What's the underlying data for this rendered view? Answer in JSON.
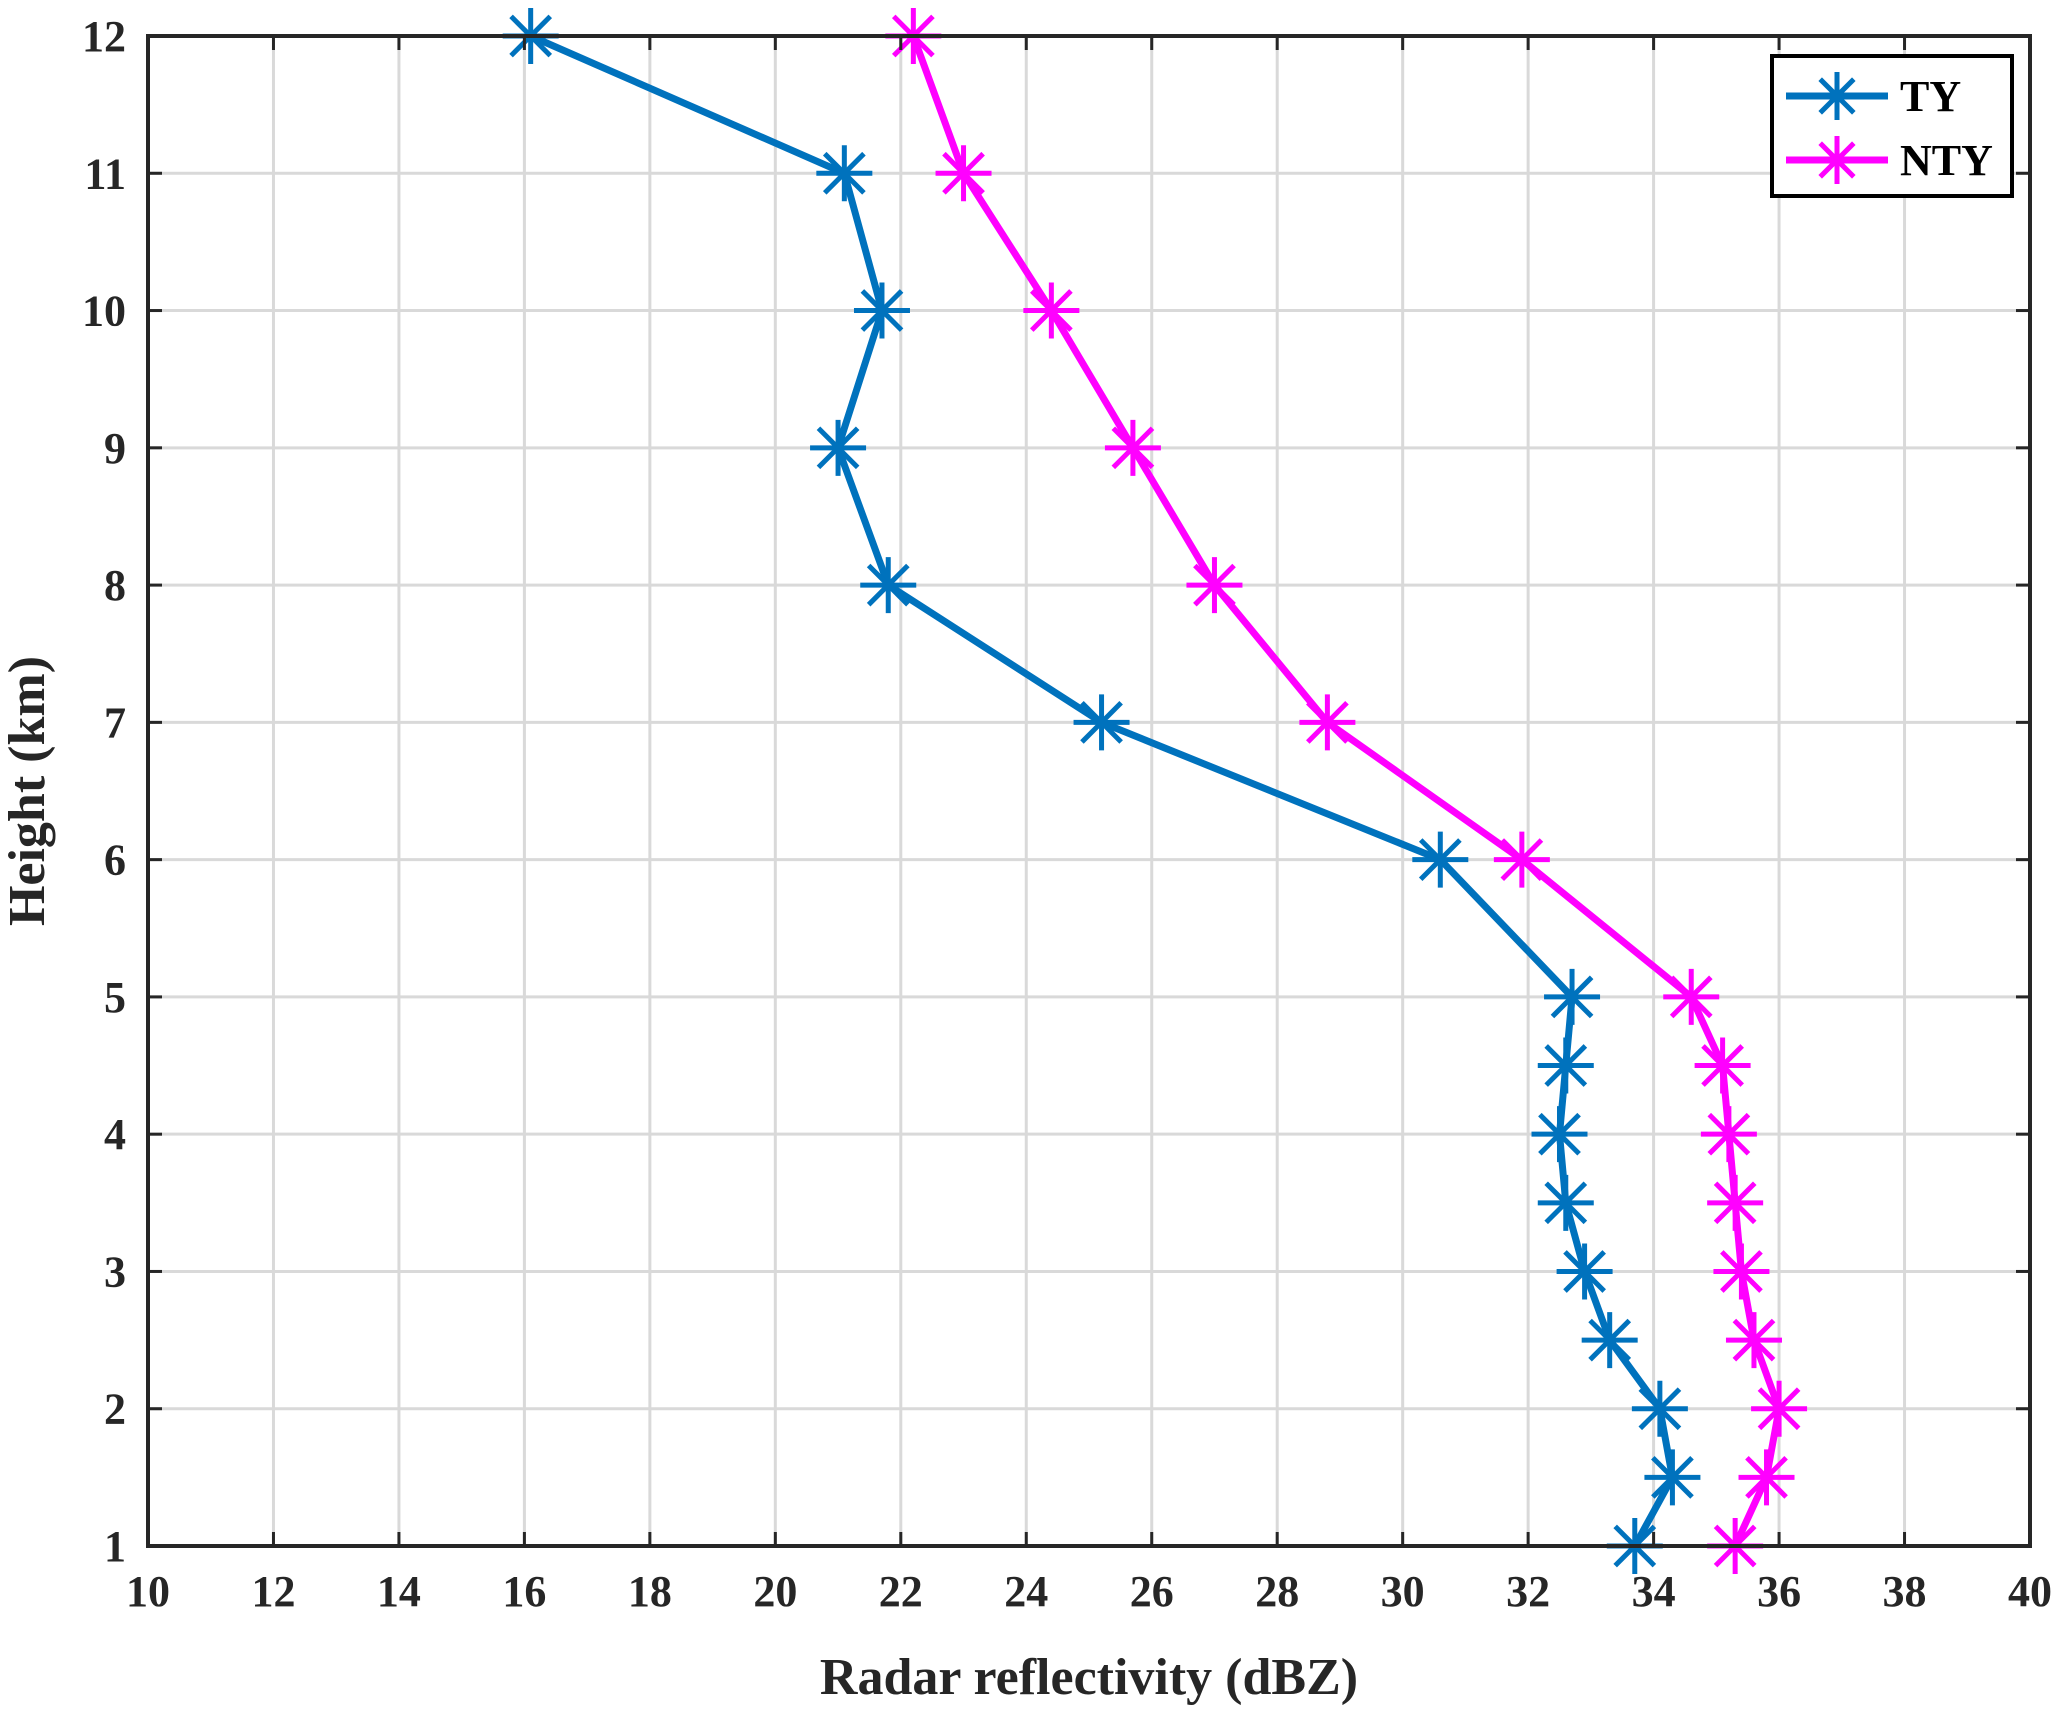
{
  "chart_data": {
    "type": "line",
    "xlabel": "Radar reflectivity (dBZ)",
    "ylabel": "Height (km)",
    "xlim": [
      10,
      40
    ],
    "ylim": [
      1,
      12
    ],
    "xticks": [
      "10",
      "12",
      "14",
      "16",
      "18",
      "20",
      "22",
      "24",
      "26",
      "28",
      "30",
      "32",
      "34",
      "36",
      "38",
      "40"
    ],
    "yticks": [
      "1",
      "2",
      "3",
      "4",
      "5",
      "6",
      "7",
      "8",
      "9",
      "10",
      "11",
      "12"
    ],
    "grid": true,
    "legend_position": "top-right",
    "marker": "asterisk",
    "series": [
      {
        "name": "TY",
        "color": "#0072BD",
        "points": [
          {
            "x": 33.7,
            "y": 1
          },
          {
            "x": 34.3,
            "y": 1.5
          },
          {
            "x": 34.1,
            "y": 2
          },
          {
            "x": 33.3,
            "y": 2.5
          },
          {
            "x": 32.9,
            "y": 3
          },
          {
            "x": 32.6,
            "y": 3.5
          },
          {
            "x": 32.5,
            "y": 4
          },
          {
            "x": 32.6,
            "y": 4.5
          },
          {
            "x": 32.7,
            "y": 5
          },
          {
            "x": 30.6,
            "y": 6
          },
          {
            "x": 25.2,
            "y": 7
          },
          {
            "x": 21.8,
            "y": 8
          },
          {
            "x": 21.0,
            "y": 9
          },
          {
            "x": 21.7,
            "y": 10
          },
          {
            "x": 21.1,
            "y": 11
          },
          {
            "x": 16.1,
            "y": 12
          }
        ]
      },
      {
        "name": "NTY",
        "color": "#FF00FF",
        "points": [
          {
            "x": 35.3,
            "y": 1
          },
          {
            "x": 35.8,
            "y": 1.5
          },
          {
            "x": 36.0,
            "y": 2
          },
          {
            "x": 35.6,
            "y": 2.5
          },
          {
            "x": 35.4,
            "y": 3
          },
          {
            "x": 35.3,
            "y": 3.5
          },
          {
            "x": 35.2,
            "y": 4
          },
          {
            "x": 35.1,
            "y": 4.5
          },
          {
            "x": 34.6,
            "y": 5
          },
          {
            "x": 31.9,
            "y": 6
          },
          {
            "x": 28.8,
            "y": 7
          },
          {
            "x": 27.0,
            "y": 8
          },
          {
            "x": 25.7,
            "y": 9
          },
          {
            "x": 24.4,
            "y": 10
          },
          {
            "x": 23.0,
            "y": 11
          },
          {
            "x": 22.2,
            "y": 12
          }
        ]
      }
    ]
  }
}
